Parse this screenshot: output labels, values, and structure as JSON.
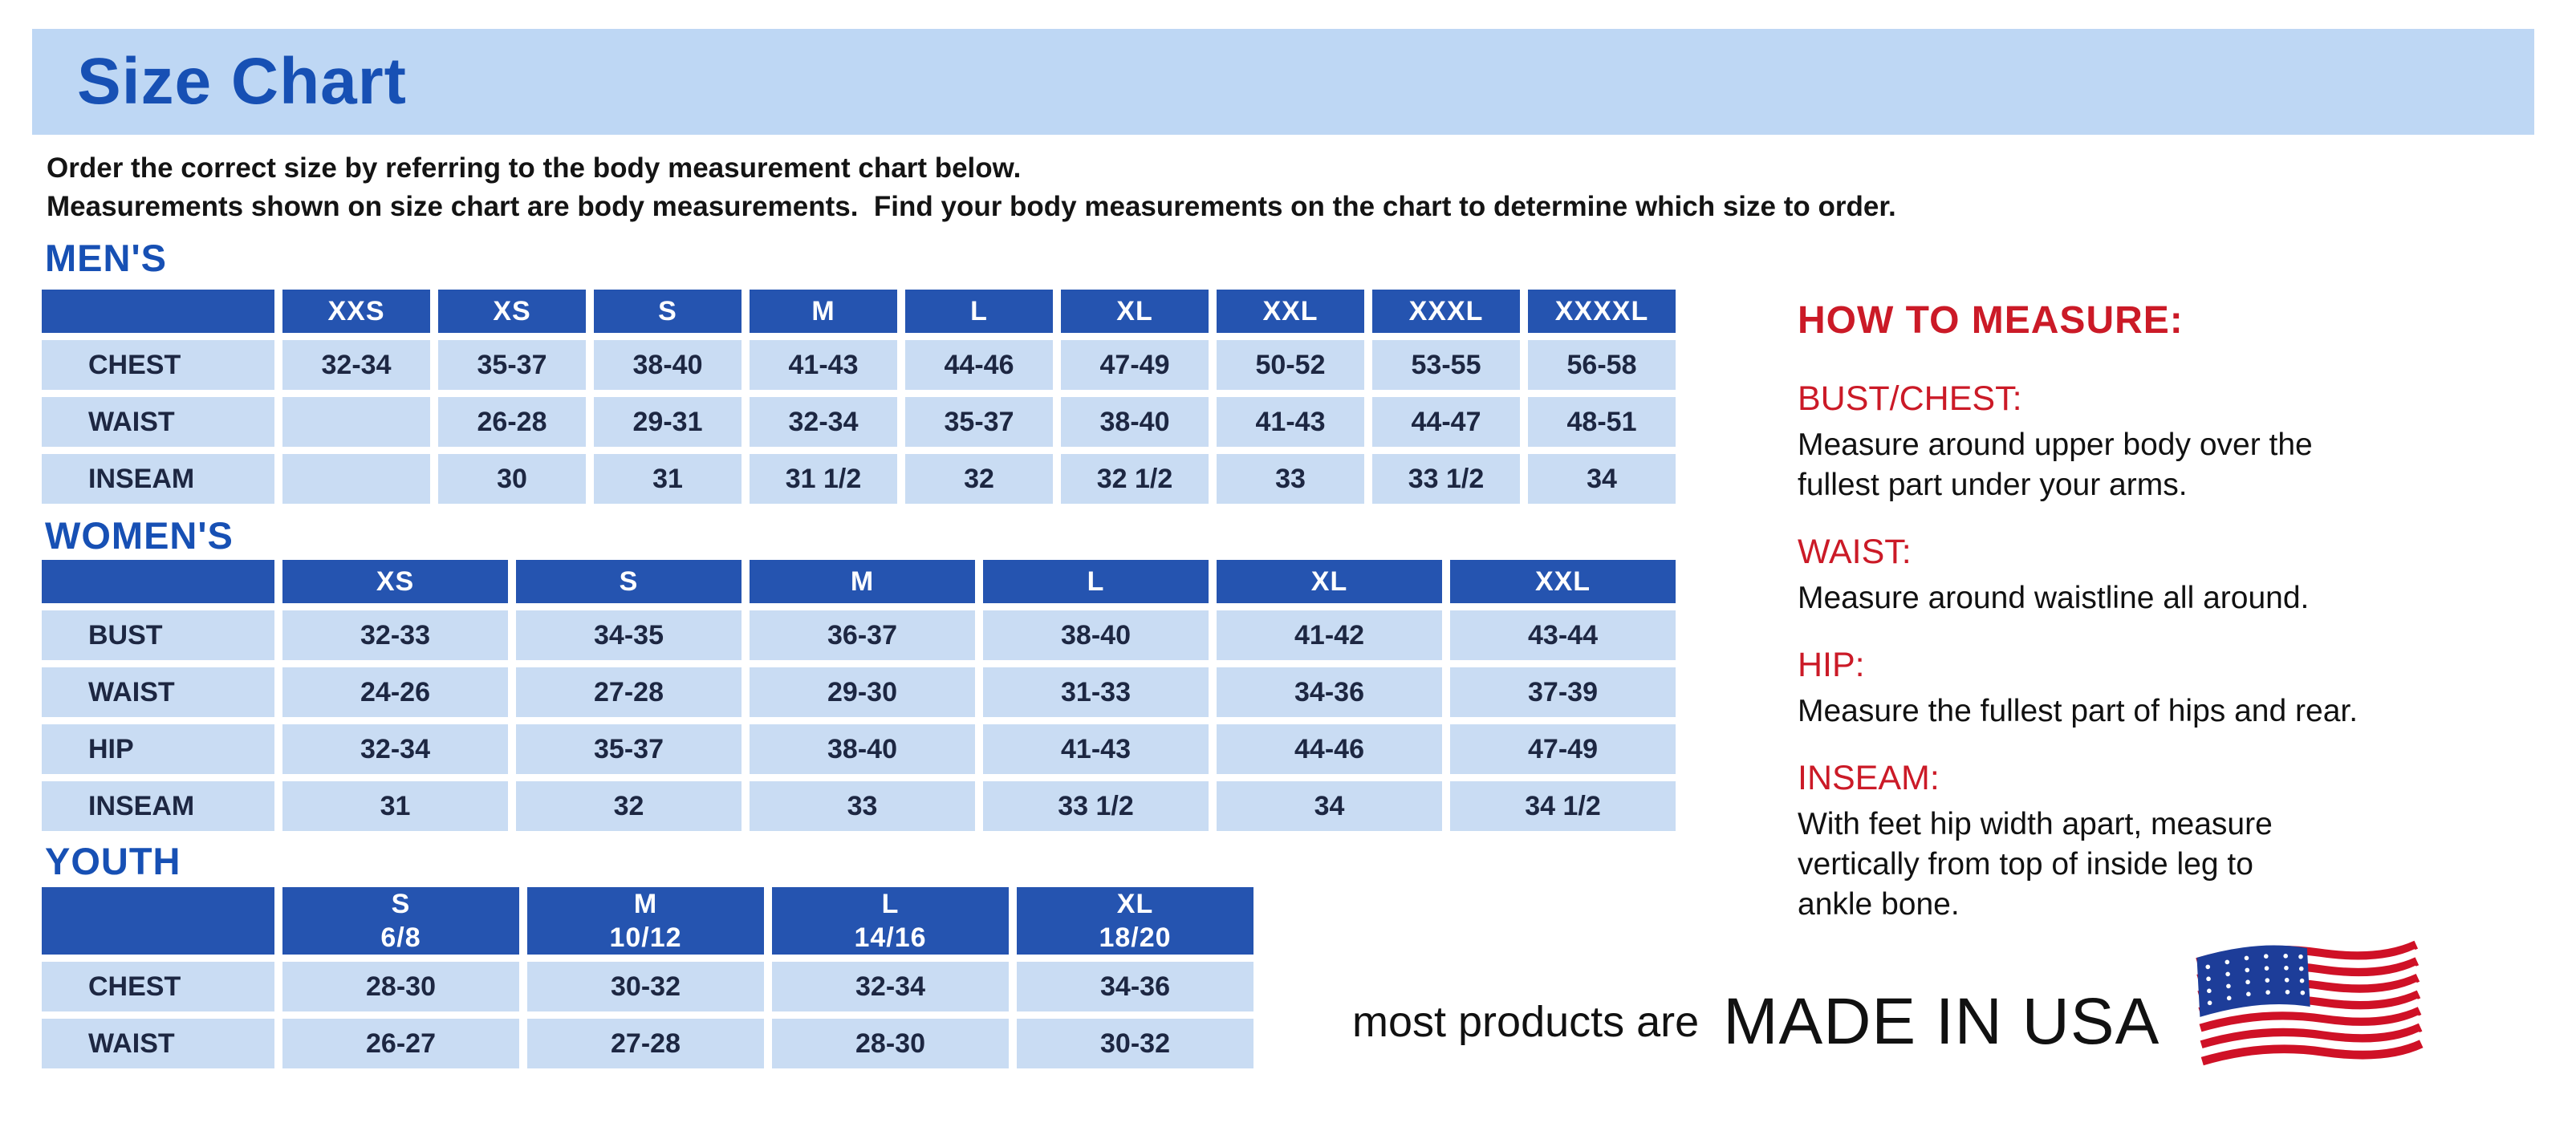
{
  "header": {
    "title": "Size Chart"
  },
  "intro": {
    "line1": "Order the correct size by referring to the body measurement chart below.",
    "line2": "Measurements shown on size chart are body measurements.  Find your body measurements on the chart to determine which size to order."
  },
  "tables": {
    "mens": {
      "heading": "MEN'S",
      "columns": [
        "XXS",
        "XS",
        "S",
        "M",
        "L",
        "XL",
        "XXL",
        "XXXL",
        "XXXXL"
      ],
      "rows": [
        {
          "label": "CHEST",
          "values": [
            "32-34",
            "35-37",
            "38-40",
            "41-43",
            "44-46",
            "47-49",
            "50-52",
            "53-55",
            "56-58"
          ]
        },
        {
          "label": "WAIST",
          "values": [
            "",
            "26-28",
            "29-31",
            "32-34",
            "35-37",
            "38-40",
            "41-43",
            "44-47",
            "48-51"
          ]
        },
        {
          "label": "INSEAM",
          "values": [
            "",
            "30",
            "31",
            "31 1/2",
            "32",
            "32 1/2",
            "33",
            "33 1/2",
            "34"
          ]
        }
      ]
    },
    "womens": {
      "heading": "WOMEN'S",
      "columns": [
        "XS",
        "S",
        "M",
        "L",
        "XL",
        "XXL"
      ],
      "rows": [
        {
          "label": "BUST",
          "values": [
            "32-33",
            "34-35",
            "36-37",
            "38-40",
            "41-42",
            "43-44"
          ]
        },
        {
          "label": "WAIST",
          "values": [
            "24-26",
            "27-28",
            "29-30",
            "31-33",
            "34-36",
            "37-39"
          ]
        },
        {
          "label": "HIP",
          "values": [
            "32-34",
            "35-37",
            "38-40",
            "41-43",
            "44-46",
            "47-49"
          ]
        },
        {
          "label": "INSEAM",
          "values": [
            "31",
            "32",
            "33",
            "33 1/2",
            "34",
            "34 1/2"
          ]
        }
      ]
    },
    "youth": {
      "heading": "YOUTH",
      "columns": [
        "S\n6/8",
        "M\n10/12",
        "L\n14/16",
        "XL\n18/20"
      ],
      "rows": [
        {
          "label": "CHEST",
          "values": [
            "28-30",
            "30-32",
            "32-34",
            "34-36"
          ]
        },
        {
          "label": "WAIST",
          "values": [
            "26-27",
            "27-28",
            "28-30",
            "30-32"
          ]
        }
      ]
    }
  },
  "how_to_measure": {
    "heading": "HOW TO MEASURE:",
    "sections": [
      {
        "label": "BUST/CHEST:",
        "text": "Measure around upper body over the\nfullest part under your arms."
      },
      {
        "label": "WAIST:",
        "text": "Measure around waistline all around."
      },
      {
        "label": "HIP:",
        "text": "Measure the fullest part of hips and rear."
      },
      {
        "label": "INSEAM:",
        "text": "With feet hip width apart, measure\nvertically from top of inside leg to\nankle bone."
      }
    ]
  },
  "footer": {
    "prefix": "most products are",
    "emphasis": "MADE IN USA",
    "flag_icon": "us-flag-icon"
  },
  "colors": {
    "banner_blue": "#bed7f4",
    "heading_blue": "#1750b4",
    "header_cell_blue": "#2554b0",
    "cell_blue": "#c9dcf3",
    "cell_text_navy": "#1d2742",
    "accent_red": "#cb1a27",
    "flag_red": "#cf1126",
    "flag_blue": "#1d3d99"
  }
}
